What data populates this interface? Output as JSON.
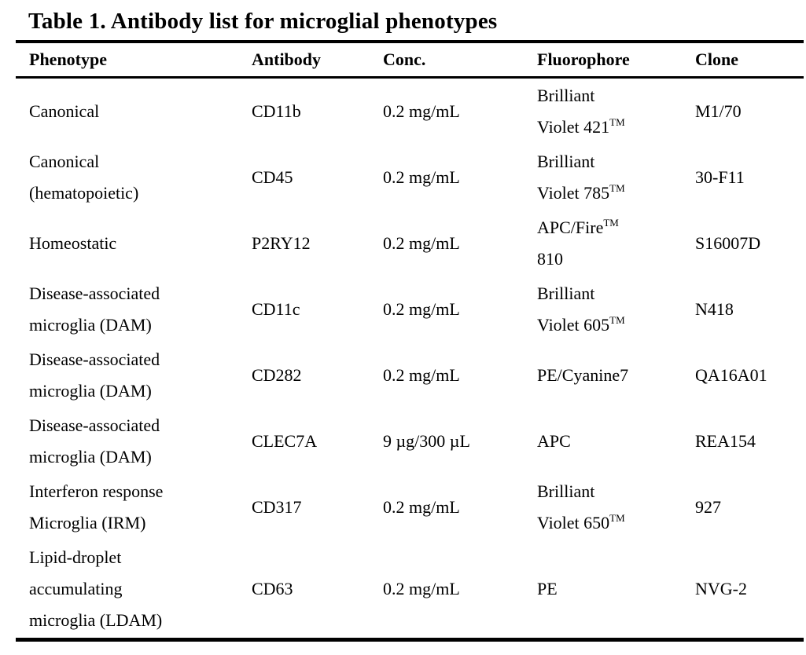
{
  "title": "Table 1. Antibody list for microglial phenotypes",
  "table": {
    "headers": [
      "Phenotype",
      "Antibody",
      "Conc.",
      "Fluorophore",
      "Clone"
    ],
    "column_keys": [
      "phenotype",
      "antibody",
      "conc",
      "fluorophore",
      "clone"
    ],
    "rows": [
      {
        "phenotype": [
          "Canonical"
        ],
        "antibody": "CD11b",
        "conc": "0.2 mg/mL",
        "fluorophore": [
          "Brilliant",
          "Violet 421™"
        ],
        "clone": "M1/70"
      },
      {
        "phenotype": [
          "Canonical",
          "(hematopoietic)"
        ],
        "antibody": "CD45",
        "conc": "0.2 mg/mL",
        "fluorophore": [
          "Brilliant",
          "Violet 785™"
        ],
        "clone": "30-F11"
      },
      {
        "phenotype": [
          "Homeostatic"
        ],
        "antibody": "P2RY12",
        "conc": "0.2 mg/mL",
        "fluorophore": [
          "APC/Fire™",
          "810"
        ],
        "clone": "S16007D"
      },
      {
        "phenotype": [
          "Disease-associated",
          "microglia (DAM)"
        ],
        "antibody": "CD11c",
        "conc": "0.2 mg/mL",
        "fluorophore": [
          "Brilliant",
          "Violet 605™"
        ],
        "clone": "N418"
      },
      {
        "phenotype": [
          "Disease-associated",
          "microglia (DAM)"
        ],
        "antibody": "CD282",
        "conc": "0.2 mg/mL",
        "fluorophore": [
          "PE/Cyanine7"
        ],
        "clone": "QA16A01"
      },
      {
        "phenotype": [
          "Disease-associated",
          "microglia (DAM)"
        ],
        "antibody": "CLEC7A",
        "conc": "9 µg/300 µL",
        "fluorophore": [
          "APC"
        ],
        "clone": "REA154"
      },
      {
        "phenotype": [
          "Interferon response",
          "Microglia (IRM)"
        ],
        "antibody": "CD317",
        "conc": "0.2 mg/mL",
        "fluorophore": [
          "Brilliant",
          "Violet 650™"
        ],
        "clone": "927"
      },
      {
        "phenotype": [
          "Lipid-droplet",
          "accumulating",
          "microglia (LDAM)"
        ],
        "antibody": "CD63",
        "conc": "0.2 mg/mL",
        "fluorophore": [
          "PE"
        ],
        "clone": "NVG-2"
      }
    ],
    "trademark_superscript": "TM",
    "text_color": "#000000",
    "background_color": "#ffffff"
  }
}
